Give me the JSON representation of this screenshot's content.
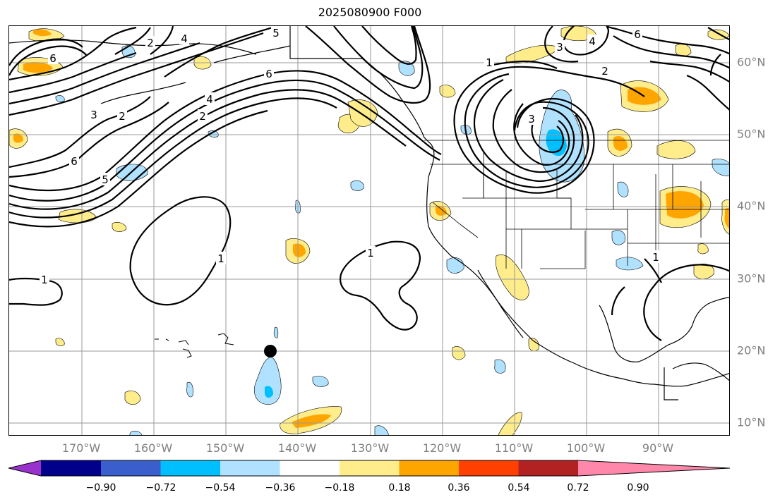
{
  "title": "2025080900 F000",
  "lon_labels": [
    "170°W",
    "160°W",
    "150°W",
    "140°W",
    "130°W",
    "120°W",
    "110°W",
    "100°W",
    "90°W"
  ],
  "lat_labels": [
    "60°N",
    "50°N",
    "40°N",
    "30°N",
    "20°N",
    "10°N"
  ],
  "colorbar": {
    "colors": [
      "#9932cc",
      "#00008b",
      "#3a5fcd",
      "#00bfff",
      "#b0e2ff",
      "#ffffff",
      "#ffec8b",
      "#ffa500",
      "#ff4000",
      "#b22222",
      "#ff88aa"
    ],
    "ticks": [
      "−0.90",
      "−0.72",
      "−0.54",
      "−0.36",
      "−0.18",
      "0.18",
      "0.36",
      "0.54",
      "0.72",
      "0.90"
    ]
  },
  "contour_labels": [
    "1",
    "1",
    "1",
    "1",
    "1",
    "2",
    "2",
    "2",
    "2",
    "3",
    "3",
    "3",
    "4",
    "4",
    "4",
    "5",
    "5",
    "6",
    "6",
    "6",
    "6"
  ],
  "marker": {
    "name": "storm-center",
    "color": "#000000"
  }
}
